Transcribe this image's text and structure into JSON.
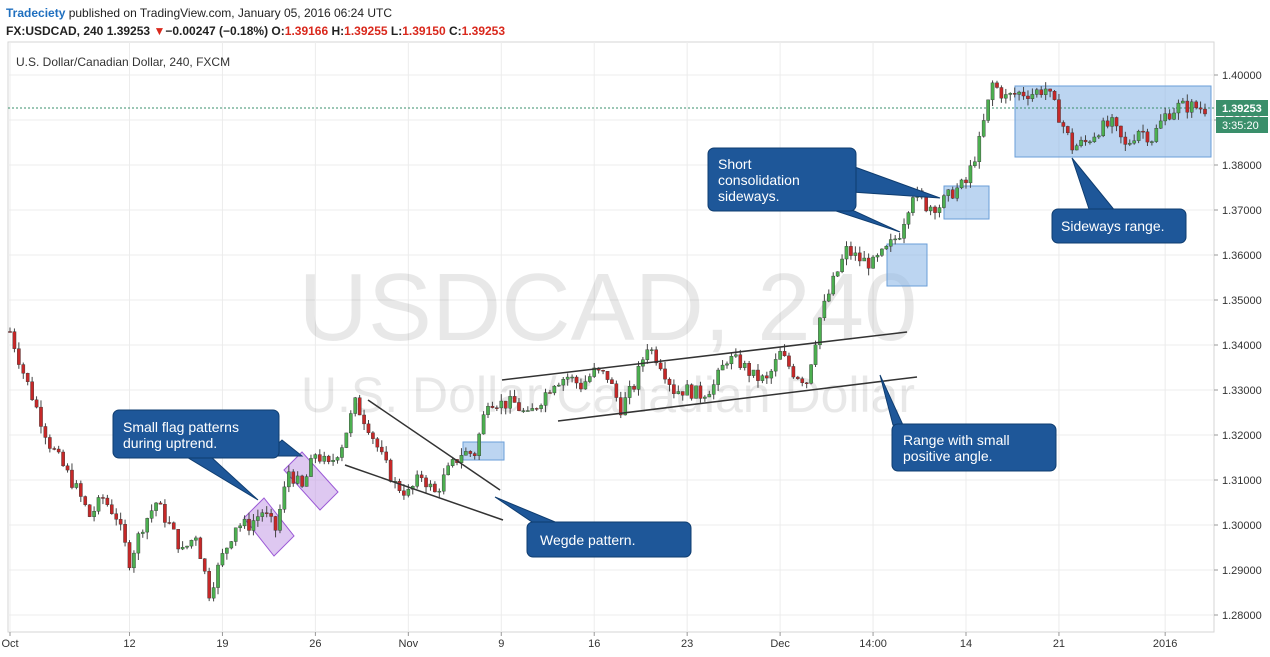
{
  "header": {
    "publisher": "Tradeciety",
    "published_text": " published on TradingView.com, January 05, 2016 06:24 UTC",
    "symbol": "FX:USDCAD, 240",
    "last": "1.39253",
    "change_arrow": "▼",
    "change": "−0.00247 (−0.18%)",
    "o_label": "O:",
    "o_value": "1.39166",
    "h_label": "H:",
    "h_value": "1.39255",
    "l_label": "L:",
    "l_value": "1.39150",
    "c_label": "C:",
    "c_value": "1.39253"
  },
  "chart_title": "U.S. Dollar/Canadian Dollar, 240, FXCM",
  "watermark": {
    "line1": "USDCAD, 240",
    "line2": "U.S. Dollar/Canadian Dollar"
  },
  "price_tag": {
    "price": "1.39253",
    "countdown": "3:35:20"
  },
  "colors": {
    "up": "#4caf50",
    "down": "#c62828",
    "callout": "#1e5799",
    "highlight_blue": "#8fb9e8",
    "highlight_purple": "#c39be6"
  },
  "callouts": {
    "flag": [
      "Small flag patterns",
      "during uptrend."
    ],
    "wedge": [
      "Wegde pattern."
    ],
    "consolidation": [
      "Short",
      "consolidation",
      "sideways."
    ],
    "range": [
      "Range with small",
      "positive angle."
    ],
    "sideways": [
      "Sideways range."
    ]
  },
  "chart_data": {
    "type": "candlestick",
    "title": "U.S. Dollar/Canadian Dollar, 240, FXCM",
    "y_ticks": [
      "1.40000",
      "1.39000",
      "1.38000",
      "1.37000",
      "1.36000",
      "1.35000",
      "1.34000",
      "1.33000",
      "1.32000",
      "1.31000",
      "1.30000",
      "1.29000",
      "1.28000"
    ],
    "ylim": [
      1.277,
      1.4025
    ],
    "x_ticks": [
      "Oct",
      "12",
      "19",
      "26",
      "Nov",
      "9",
      "16",
      "23",
      "Dec",
      "14:00",
      "14",
      "21",
      "2016"
    ],
    "x_tick_index": [
      0,
      9,
      16,
      23,
      30,
      37,
      44,
      51,
      58,
      65,
      72,
      79,
      87
    ],
    "anchors": [
      [
        0,
        1.343
      ],
      [
        1,
        1.334
      ],
      [
        3,
        1.318
      ],
      [
        5,
        1.308
      ],
      [
        6,
        1.302
      ],
      [
        7,
        1.306
      ],
      [
        8,
        1.302
      ],
      [
        9,
        1.292
      ],
      [
        10,
        1.3
      ],
      [
        11,
        1.305
      ],
      [
        12,
        1.3
      ],
      [
        13,
        1.294
      ],
      [
        14,
        1.298
      ],
      [
        15,
        1.285
      ],
      [
        16,
        1.293
      ],
      [
        17,
        1.3
      ],
      [
        18,
        1.3
      ],
      [
        19,
        1.303
      ],
      [
        20,
        1.299
      ],
      [
        21,
        1.312
      ],
      [
        22,
        1.308
      ],
      [
        23,
        1.316
      ],
      [
        24,
        1.313
      ],
      [
        25,
        1.318
      ],
      [
        26,
        1.327
      ],
      [
        27,
        1.322
      ],
      [
        28,
        1.315
      ],
      [
        29,
        1.309
      ],
      [
        30,
        1.307
      ],
      [
        31,
        1.311
      ],
      [
        32,
        1.307
      ],
      [
        33,
        1.312
      ],
      [
        34,
        1.316
      ],
      [
        35,
        1.316
      ],
      [
        36,
        1.328
      ],
      [
        37,
        1.327
      ],
      [
        38,
        1.327
      ],
      [
        39,
        1.324
      ],
      [
        40,
        1.328
      ],
      [
        41,
        1.332
      ],
      [
        42,
        1.333
      ],
      [
        43,
        1.331
      ],
      [
        44,
        1.334
      ],
      [
        45,
        1.333
      ],
      [
        46,
        1.326
      ],
      [
        47,
        1.331
      ],
      [
        48,
        1.34
      ],
      [
        49,
        1.336
      ],
      [
        50,
        1.33
      ],
      [
        51,
        1.33
      ],
      [
        52,
        1.329
      ],
      [
        53,
        1.331
      ],
      [
        54,
        1.337
      ],
      [
        55,
        1.336
      ],
      [
        56,
        1.333
      ],
      [
        57,
        1.332
      ],
      [
        58,
        1.338
      ],
      [
        59,
        1.334
      ],
      [
        60,
        1.332
      ],
      [
        61,
        1.346
      ],
      [
        62,
        1.354
      ],
      [
        63,
        1.361
      ],
      [
        64,
        1.359
      ],
      [
        65,
        1.358
      ],
      [
        66,
        1.361
      ],
      [
        67,
        1.365
      ],
      [
        68,
        1.374
      ],
      [
        69,
        1.371
      ],
      [
        70,
        1.371
      ],
      [
        71,
        1.374
      ],
      [
        72,
        1.376
      ],
      [
        73,
        1.385
      ],
      [
        74,
        1.398
      ],
      [
        75,
        1.395
      ],
      [
        76,
        1.396
      ],
      [
        77,
        1.396
      ],
      [
        78,
        1.397
      ],
      [
        79,
        1.391
      ],
      [
        80,
        1.384
      ],
      [
        81,
        1.385
      ],
      [
        82,
        1.388
      ],
      [
        83,
        1.389
      ],
      [
        84,
        1.384
      ],
      [
        85,
        1.388
      ],
      [
        86,
        1.386
      ],
      [
        87,
        1.391
      ],
      [
        88,
        1.393
      ],
      [
        89,
        1.393
      ],
      [
        90,
        1.3925
      ]
    ]
  }
}
